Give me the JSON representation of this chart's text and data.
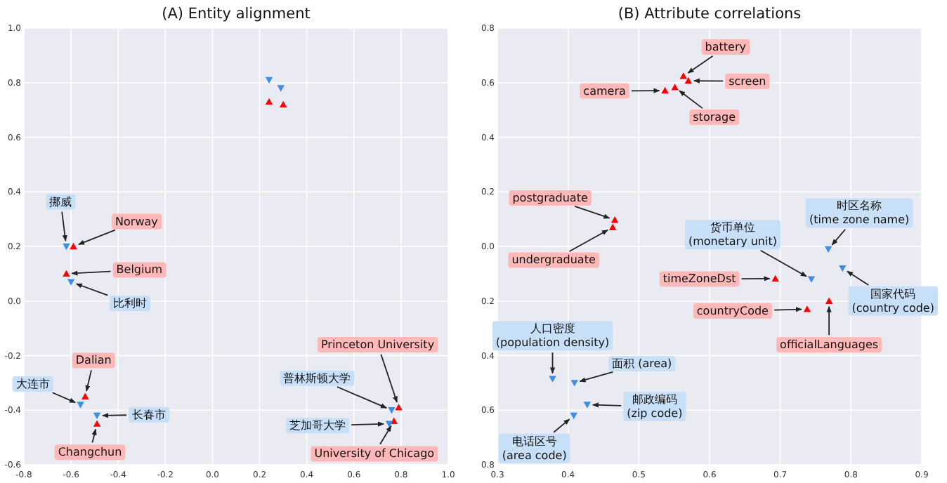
{
  "chart_data": [
    {
      "type": "scatter",
      "title": "(A) Entity alignment",
      "grid": true,
      "xlim": [
        -0.8,
        1.0
      ],
      "ylim": [
        -0.6,
        1.0
      ],
      "xticks": [
        {
          "value": -0.8,
          "label": "-0.8"
        },
        {
          "value": -0.6,
          "label": "-0.6"
        },
        {
          "value": -0.4,
          "label": "-0.4"
        },
        {
          "value": -0.2,
          "label": "-0.2"
        },
        {
          "value": 0,
          "label": "0.0"
        },
        {
          "value": 0.2,
          "label": "0.2"
        },
        {
          "value": 0.4,
          "label": "0.4"
        },
        {
          "value": 0.6,
          "label": "0.6"
        },
        {
          "value": 0.8,
          "label": "0.8"
        },
        {
          "value": 1.0,
          "label": "1.0"
        }
      ],
      "yticks": [
        {
          "value": -0.6,
          "label": "-0.6"
        },
        {
          "value": -0.4,
          "label": "-0.4"
        },
        {
          "value": -0.2,
          "label": "-0.2"
        },
        {
          "value": 0,
          "label": "0.0"
        },
        {
          "value": 0.2,
          "label": "0.2"
        },
        {
          "value": 0.4,
          "label": "0.4"
        },
        {
          "value": 0.6,
          "label": "0.6"
        },
        {
          "value": 0.8,
          "label": "0.8"
        },
        {
          "value": 1.0,
          "label": "1.0"
        }
      ],
      "series": [
        {
          "color": "#ff0000",
          "marker": "triangle",
          "x": [
            0.24,
            0.3,
            -0.59,
            -0.62,
            -0.54,
            -0.49,
            0.79,
            0.77
          ],
          "values": [
            0.73,
            0.72,
            0.2,
            0.1,
            -0.35,
            -0.45,
            -0.39,
            -0.44
          ]
        },
        {
          "color": "#3a8ee6",
          "marker": "triangle_down",
          "x": [
            0.24,
            0.29,
            -0.62,
            -0.6,
            -0.56,
            -0.49,
            0.76,
            0.75
          ],
          "values": [
            0.81,
            0.78,
            0.2,
            0.07,
            -0.38,
            -0.42,
            -0.4,
            -0.45
          ]
        }
      ],
      "annotations": [
        {
          "text": "挪威",
          "x": -0.62,
          "y": 0.2
        },
        {
          "text": "Norway",
          "x": -0.59,
          "y": 0.2
        },
        {
          "text": "Belgium",
          "x": -0.62,
          "y": 0.1
        },
        {
          "text": "比利时",
          "x": -0.6,
          "y": 0.07
        },
        {
          "text": "Dalian",
          "x": -0.54,
          "y": -0.35
        },
        {
          "text": "大连市",
          "x": -0.56,
          "y": -0.38
        },
        {
          "text": "长春市",
          "x": -0.49,
          "y": -0.42
        },
        {
          "text": "Changchun",
          "x": -0.49,
          "y": -0.45
        },
        {
          "text": "Princeton University",
          "x": 0.79,
          "y": -0.39
        },
        {
          "text": "普林斯顿大学",
          "x": 0.76,
          "y": -0.4
        },
        {
          "text": "芝加哥大学",
          "x": 0.75,
          "y": -0.45
        },
        {
          "text": "University of Chicago",
          "x": 0.77,
          "y": -0.44
        }
      ]
    },
    {
      "type": "scatter",
      "title": "(B) Attribute correlations",
      "grid": true,
      "xlim": [
        0.3,
        0.9
      ],
      "ylim": [
        -0.8,
        0.8
      ],
      "xticks": [
        {
          "value": 0.3,
          "label": "0.3"
        },
        {
          "value": 0.4,
          "label": "0.4"
        },
        {
          "value": 0.5,
          "label": "0.5"
        },
        {
          "value": 0.6,
          "label": "0.6"
        },
        {
          "value": 0.7,
          "label": "0.7"
        },
        {
          "value": 0.8,
          "label": "0.8"
        },
        {
          "value": 0.9,
          "label": "0.9"
        }
      ],
      "yticks": [
        {
          "value": -0.8,
          "label": "0.8"
        },
        {
          "value": -0.6,
          "label": "0.6"
        },
        {
          "value": -0.4,
          "label": "0.4"
        },
        {
          "value": -0.2,
          "label": "0.2"
        },
        {
          "value": 0,
          "label": "0.0"
        },
        {
          "value": 0.2,
          "label": "0.2"
        },
        {
          "value": 0.4,
          "label": "0.4"
        },
        {
          "value": 0.6,
          "label": "0.6"
        },
        {
          "value": 0.8,
          "label": "0.8"
        }
      ],
      "series": [
        {
          "color": "#ff0000",
          "marker": "triangle",
          "x": [
            0.563,
            0.57,
            0.551,
            0.537,
            0.466,
            0.463,
            0.693,
            0.738,
            0.769
          ],
          "values": [
            0.624,
            0.607,
            0.583,
            0.571,
            0.097,
            0.07,
            -0.118,
            -0.23,
            -0.2
          ]
        },
        {
          "color": "#3a8ee6",
          "marker": "triangle_down",
          "x": [
            0.768,
            0.744,
            0.788,
            0.378,
            0.409,
            0.427,
            0.408
          ],
          "values": [
            -0.01,
            -0.12,
            -0.08,
            -0.485,
            -0.5,
            -0.58,
            -0.62
          ]
        }
      ],
      "annotations": [
        {
          "text": "battery",
          "x": 0.563,
          "y": 0.624
        },
        {
          "text": "screen",
          "x": 0.57,
          "y": 0.607
        },
        {
          "text": "storage",
          "x": 0.551,
          "y": 0.583
        },
        {
          "text": "camera",
          "x": 0.537,
          "y": 0.571
        },
        {
          "text": "postgraduate",
          "x": 0.466,
          "y": 0.097
        },
        {
          "text": "undergraduate",
          "x": 0.463,
          "y": 0.07
        },
        {
          "text": "timeZoneDst",
          "x": 0.693,
          "y": -0.118
        },
        {
          "text": "countryCode",
          "x": 0.738,
          "y": -0.23
        },
        {
          "text": "officialLanguages",
          "x": 0.769,
          "y": -0.2
        },
        {
          "text": "时区名称\n(time zone name)",
          "x": 0.768,
          "y": -0.01
        },
        {
          "text": "货币单位\n(monetary unit)",
          "x": 0.744,
          "y": -0.12
        },
        {
          "text": "国家代码\n(country code)",
          "x": 0.788,
          "y": -0.08
        },
        {
          "text": "人口密度\n(population density)",
          "x": 0.378,
          "y": -0.485
        },
        {
          "text": "面积 (area)",
          "x": 0.409,
          "y": -0.5
        },
        {
          "text": "邮政编码\n(zip code)",
          "x": 0.427,
          "y": -0.58
        },
        {
          "text": "电话区号\n(area code)",
          "x": 0.408,
          "y": -0.62
        }
      ]
    }
  ]
}
